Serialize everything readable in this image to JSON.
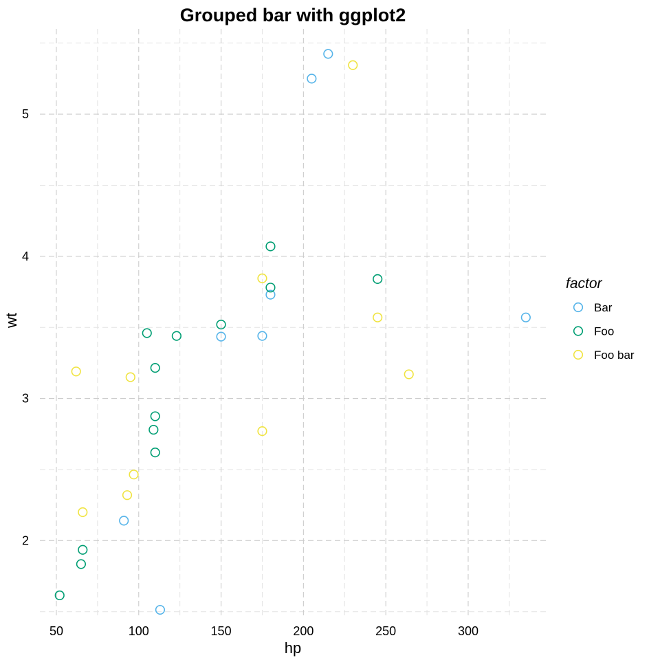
{
  "chart_data": {
    "type": "scatter",
    "title": "Grouped bar with ggplot2",
    "xlabel": "hp",
    "ylabel": "wt",
    "xlim": [
      40,
      348
    ],
    "ylim": [
      1.46,
      5.6
    ],
    "x_major_ticks": [
      50,
      100,
      150,
      200,
      250,
      300
    ],
    "x_minor_ticks": [
      75,
      125,
      175,
      225,
      275,
      325
    ],
    "y_major_ticks": [
      2,
      3,
      4,
      5
    ],
    "y_minor_ticks": [
      1.5,
      2.5,
      3.5,
      4.5,
      5.5
    ],
    "x_tick_labels": [
      "50",
      "100",
      "150",
      "200",
      "250",
      "300"
    ],
    "y_tick_labels": [
      "2",
      "3",
      "4",
      "5"
    ],
    "grid": true,
    "legend": {
      "title": "factor",
      "position": "right"
    },
    "series": [
      {
        "name": "Bar",
        "color": "#56B4E9",
        "points": [
          [
            215,
            5.424
          ],
          [
            205,
            5.25
          ],
          [
            180,
            3.73
          ],
          [
            175,
            3.44
          ],
          [
            150,
            3.435
          ],
          [
            335,
            3.57
          ],
          [
            91,
            2.14
          ],
          [
            113,
            1.513
          ]
        ]
      },
      {
        "name": "Foo",
        "color": "#009E73",
        "points": [
          [
            180,
            4.07
          ],
          [
            245,
            3.84
          ],
          [
            180,
            3.78
          ],
          [
            150,
            3.52
          ],
          [
            105,
            3.46
          ],
          [
            123,
            3.44
          ],
          [
            110,
            3.215
          ],
          [
            110,
            2.875
          ],
          [
            109,
            2.78
          ],
          [
            110,
            2.62
          ],
          [
            66,
            1.935
          ],
          [
            65,
            1.835
          ],
          [
            52,
            1.615
          ]
        ]
      },
      {
        "name": "Foo bar",
        "color": "#F0E442",
        "points": [
          [
            230,
            5.345
          ],
          [
            175,
            3.845
          ],
          [
            245,
            3.57
          ],
          [
            62,
            3.19
          ],
          [
            264,
            3.17
          ],
          [
            95,
            3.15
          ],
          [
            175,
            2.77
          ],
          [
            97,
            2.465
          ],
          [
            93,
            2.32
          ],
          [
            66,
            2.2
          ]
        ]
      }
    ]
  }
}
